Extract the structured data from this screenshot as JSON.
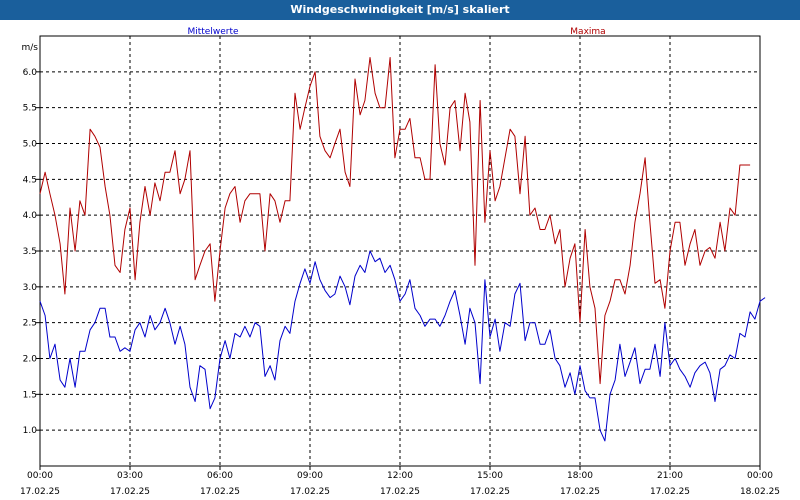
{
  "chart_data": {
    "type": "line",
    "title": "Windgeschwindigkeit [m/s] skaliert",
    "ylabel": "m/s",
    "ylim": [
      0.5,
      6.5
    ],
    "yticks": [
      1.0,
      1.5,
      2.0,
      2.5,
      3.0,
      3.5,
      4.0,
      4.5,
      5.0,
      5.5,
      6.0
    ],
    "xlim_hours": [
      0,
      24
    ],
    "xticks": [
      {
        "hour": 0,
        "time": "00:00",
        "date": "17.02.25"
      },
      {
        "hour": 3,
        "time": "03:00",
        "date": "17.02.25"
      },
      {
        "hour": 6,
        "time": "06:00",
        "date": "17.02.25"
      },
      {
        "hour": 9,
        "time": "09:00",
        "date": "17.02.25"
      },
      {
        "hour": 12,
        "time": "12:00",
        "date": "17.02.25"
      },
      {
        "hour": 15,
        "time": "15:00",
        "date": "17.02.25"
      },
      {
        "hour": 18,
        "time": "18:00",
        "date": "17.02.25"
      },
      {
        "hour": 21,
        "time": "21:00",
        "date": "17.02.25"
      },
      {
        "hour": 24,
        "time": "00:00",
        "date": "18.02.25"
      }
    ],
    "grid": true,
    "series": [
      {
        "name": "Mittelwerte",
        "color": "#0000cc",
        "points": [
          [
            0.0,
            2.8
          ],
          [
            0.17,
            2.6
          ],
          [
            0.33,
            2.0
          ],
          [
            0.5,
            2.2
          ],
          [
            0.67,
            1.7
          ],
          [
            0.83,
            1.6
          ],
          [
            1.0,
            2.0
          ],
          [
            1.17,
            1.6
          ],
          [
            1.33,
            2.1
          ],
          [
            1.5,
            2.1
          ],
          [
            1.67,
            2.4
          ],
          [
            1.83,
            2.5
          ],
          [
            2.0,
            2.7
          ],
          [
            2.17,
            2.7
          ],
          [
            2.33,
            2.3
          ],
          [
            2.5,
            2.3
          ],
          [
            2.67,
            2.1
          ],
          [
            2.83,
            2.15
          ],
          [
            3.0,
            2.1
          ],
          [
            3.17,
            2.4
          ],
          [
            3.33,
            2.5
          ],
          [
            3.5,
            2.3
          ],
          [
            3.67,
            2.6
          ],
          [
            3.83,
            2.4
          ],
          [
            4.0,
            2.5
          ],
          [
            4.17,
            2.7
          ],
          [
            4.33,
            2.5
          ],
          [
            4.5,
            2.2
          ],
          [
            4.67,
            2.45
          ],
          [
            4.83,
            2.2
          ],
          [
            5.0,
            1.6
          ],
          [
            5.17,
            1.4
          ],
          [
            5.33,
            1.9
          ],
          [
            5.5,
            1.85
          ],
          [
            5.67,
            1.3
          ],
          [
            5.83,
            1.45
          ],
          [
            6.0,
            2.0
          ],
          [
            6.17,
            2.25
          ],
          [
            6.33,
            2.0
          ],
          [
            6.5,
            2.35
          ],
          [
            6.67,
            2.3
          ],
          [
            6.83,
            2.45
          ],
          [
            7.0,
            2.3
          ],
          [
            7.17,
            2.5
          ],
          [
            7.33,
            2.45
          ],
          [
            7.5,
            1.75
          ],
          [
            7.67,
            1.9
          ],
          [
            7.83,
            1.7
          ],
          [
            8.0,
            2.25
          ],
          [
            8.17,
            2.45
          ],
          [
            8.33,
            2.35
          ],
          [
            8.5,
            2.8
          ],
          [
            8.67,
            3.05
          ],
          [
            8.83,
            3.25
          ],
          [
            9.0,
            3.05
          ],
          [
            9.17,
            3.35
          ],
          [
            9.33,
            3.1
          ],
          [
            9.5,
            2.95
          ],
          [
            9.67,
            2.85
          ],
          [
            9.83,
            2.9
          ],
          [
            10.0,
            3.15
          ],
          [
            10.17,
            3.0
          ],
          [
            10.33,
            2.75
          ],
          [
            10.5,
            3.15
          ],
          [
            10.67,
            3.3
          ],
          [
            10.83,
            3.2
          ],
          [
            11.0,
            3.5
          ],
          [
            11.17,
            3.35
          ],
          [
            11.33,
            3.4
          ],
          [
            11.5,
            3.2
          ],
          [
            11.67,
            3.3
          ],
          [
            11.83,
            3.1
          ],
          [
            12.0,
            2.8
          ],
          [
            12.17,
            2.9
          ],
          [
            12.33,
            3.1
          ],
          [
            12.5,
            2.7
          ],
          [
            12.67,
            2.6
          ],
          [
            12.83,
            2.45
          ],
          [
            13.0,
            2.55
          ],
          [
            13.17,
            2.55
          ],
          [
            13.33,
            2.45
          ],
          [
            13.5,
            2.6
          ],
          [
            13.67,
            2.8
          ],
          [
            13.83,
            2.95
          ],
          [
            14.0,
            2.6
          ],
          [
            14.17,
            2.2
          ],
          [
            14.33,
            2.7
          ],
          [
            14.5,
            2.5
          ],
          [
            14.67,
            1.65
          ],
          [
            14.83,
            3.1
          ],
          [
            15.0,
            2.3
          ],
          [
            15.17,
            2.55
          ],
          [
            15.33,
            2.1
          ],
          [
            15.5,
            2.5
          ],
          [
            15.67,
            2.45
          ],
          [
            15.83,
            2.9
          ],
          [
            16.0,
            3.05
          ],
          [
            16.17,
            2.25
          ],
          [
            16.33,
            2.5
          ],
          [
            16.5,
            2.5
          ],
          [
            16.67,
            2.2
          ],
          [
            16.83,
            2.2
          ],
          [
            17.0,
            2.4
          ],
          [
            17.17,
            2.0
          ],
          [
            17.33,
            1.9
          ],
          [
            17.5,
            1.6
          ],
          [
            17.67,
            1.8
          ],
          [
            17.83,
            1.5
          ],
          [
            18.0,
            1.9
          ],
          [
            18.17,
            1.55
          ],
          [
            18.33,
            1.45
          ],
          [
            18.5,
            1.45
          ],
          [
            18.67,
            1.0
          ],
          [
            18.83,
            0.85
          ],
          [
            19.0,
            1.5
          ],
          [
            19.17,
            1.7
          ],
          [
            19.33,
            2.2
          ],
          [
            19.5,
            1.75
          ],
          [
            19.67,
            1.95
          ],
          [
            19.83,
            2.15
          ],
          [
            20.0,
            1.65
          ],
          [
            20.17,
            1.85
          ],
          [
            20.33,
            1.85
          ],
          [
            20.5,
            2.2
          ],
          [
            20.67,
            1.75
          ],
          [
            20.83,
            2.5
          ],
          [
            21.0,
            1.9
          ],
          [
            21.17,
            2.0
          ],
          [
            21.33,
            1.85
          ],
          [
            21.5,
            1.75
          ],
          [
            21.67,
            1.6
          ],
          [
            21.83,
            1.8
          ],
          [
            22.0,
            1.9
          ],
          [
            22.17,
            1.95
          ],
          [
            22.33,
            1.8
          ],
          [
            22.5,
            1.4
          ],
          [
            22.67,
            1.85
          ],
          [
            22.83,
            1.9
          ],
          [
            23.0,
            2.05
          ],
          [
            23.17,
            2.0
          ],
          [
            23.33,
            2.35
          ],
          [
            23.5,
            2.3
          ],
          [
            23.67,
            2.65
          ],
          [
            23.83,
            2.55
          ],
          [
            24.0,
            2.8
          ],
          [
            24.17,
            2.85
          ]
        ]
      },
      {
        "name": "Maxima",
        "color": "#b00000",
        "points": [
          [
            0.0,
            4.3
          ],
          [
            0.17,
            4.6
          ],
          [
            0.33,
            4.3
          ],
          [
            0.5,
            4.0
          ],
          [
            0.67,
            3.6
          ],
          [
            0.83,
            2.9
          ],
          [
            1.0,
            4.1
          ],
          [
            1.17,
            3.5
          ],
          [
            1.33,
            4.2
          ],
          [
            1.5,
            4.0
          ],
          [
            1.67,
            5.2
          ],
          [
            1.83,
            5.1
          ],
          [
            2.0,
            4.95
          ],
          [
            2.17,
            4.4
          ],
          [
            2.33,
            4.0
          ],
          [
            2.5,
            3.3
          ],
          [
            2.67,
            3.2
          ],
          [
            2.83,
            3.8
          ],
          [
            3.0,
            4.1
          ],
          [
            3.17,
            3.1
          ],
          [
            3.33,
            3.9
          ],
          [
            3.5,
            4.4
          ],
          [
            3.67,
            4.0
          ],
          [
            3.83,
            4.45
          ],
          [
            4.0,
            4.2
          ],
          [
            4.17,
            4.6
          ],
          [
            4.33,
            4.6
          ],
          [
            4.5,
            4.9
          ],
          [
            4.67,
            4.3
          ],
          [
            4.83,
            4.5
          ],
          [
            5.0,
            4.9
          ],
          [
            5.17,
            3.1
          ],
          [
            5.33,
            3.3
          ],
          [
            5.5,
            3.5
          ],
          [
            5.67,
            3.6
          ],
          [
            5.83,
            2.8
          ],
          [
            6.0,
            3.5
          ],
          [
            6.17,
            4.1
          ],
          [
            6.33,
            4.3
          ],
          [
            6.5,
            4.4
          ],
          [
            6.67,
            3.9
          ],
          [
            6.83,
            4.2
          ],
          [
            7.0,
            4.3
          ],
          [
            7.17,
            4.3
          ],
          [
            7.33,
            4.3
          ],
          [
            7.5,
            3.5
          ],
          [
            7.67,
            4.3
          ],
          [
            7.83,
            4.2
          ],
          [
            8.0,
            3.9
          ],
          [
            8.17,
            4.2
          ],
          [
            8.33,
            4.2
          ],
          [
            8.5,
            5.7
          ],
          [
            8.67,
            5.2
          ],
          [
            8.83,
            5.5
          ],
          [
            9.0,
            5.8
          ],
          [
            9.17,
            6.0
          ],
          [
            9.33,
            5.1
          ],
          [
            9.5,
            4.9
          ],
          [
            9.67,
            4.8
          ],
          [
            9.83,
            5.0
          ],
          [
            10.0,
            5.2
          ],
          [
            10.17,
            4.6
          ],
          [
            10.33,
            4.4
          ],
          [
            10.5,
            5.9
          ],
          [
            10.67,
            5.4
          ],
          [
            10.83,
            5.6
          ],
          [
            11.0,
            6.2
          ],
          [
            11.17,
            5.7
          ],
          [
            11.33,
            5.5
          ],
          [
            11.5,
            5.5
          ],
          [
            11.67,
            6.2
          ],
          [
            11.83,
            4.8
          ],
          [
            12.0,
            5.2
          ],
          [
            12.17,
            5.2
          ],
          [
            12.33,
            5.35
          ],
          [
            12.5,
            4.8
          ],
          [
            12.67,
            4.8
          ],
          [
            12.83,
            4.5
          ],
          [
            13.0,
            4.5
          ],
          [
            13.17,
            6.1
          ],
          [
            13.33,
            5.0
          ],
          [
            13.5,
            4.7
          ],
          [
            13.67,
            5.5
          ],
          [
            13.83,
            5.6
          ],
          [
            14.0,
            4.9
          ],
          [
            14.17,
            5.7
          ],
          [
            14.33,
            5.3
          ],
          [
            14.5,
            3.3
          ],
          [
            14.67,
            5.6
          ],
          [
            14.83,
            3.9
          ],
          [
            15.0,
            4.9
          ],
          [
            15.17,
            4.2
          ],
          [
            15.33,
            4.4
          ],
          [
            15.5,
            4.8
          ],
          [
            15.67,
            5.2
          ],
          [
            15.83,
            5.1
          ],
          [
            16.0,
            4.3
          ],
          [
            16.17,
            5.1
          ],
          [
            16.33,
            4.0
          ],
          [
            16.5,
            4.1
          ],
          [
            16.67,
            3.8
          ],
          [
            16.83,
            3.8
          ],
          [
            17.0,
            4.0
          ],
          [
            17.17,
            3.6
          ],
          [
            17.33,
            3.8
          ],
          [
            17.5,
            3.0
          ],
          [
            17.67,
            3.4
          ],
          [
            17.83,
            3.6
          ],
          [
            18.0,
            2.5
          ],
          [
            18.17,
            3.8
          ],
          [
            18.33,
            3.0
          ],
          [
            18.5,
            2.7
          ],
          [
            18.67,
            1.65
          ],
          [
            18.83,
            2.6
          ],
          [
            19.0,
            2.8
          ],
          [
            19.17,
            3.1
          ],
          [
            19.33,
            3.1
          ],
          [
            19.5,
            2.9
          ],
          [
            19.67,
            3.3
          ],
          [
            19.83,
            3.9
          ],
          [
            20.0,
            4.3
          ],
          [
            20.17,
            4.8
          ],
          [
            20.33,
            3.9
          ],
          [
            20.5,
            3.05
          ],
          [
            20.67,
            3.1
          ],
          [
            20.83,
            2.7
          ],
          [
            21.0,
            3.5
          ],
          [
            21.17,
            3.9
          ],
          [
            21.33,
            3.9
          ],
          [
            21.5,
            3.3
          ],
          [
            21.67,
            3.6
          ],
          [
            21.83,
            3.8
          ],
          [
            22.0,
            3.3
          ],
          [
            22.17,
            3.5
          ],
          [
            22.33,
            3.55
          ],
          [
            22.5,
            3.4
          ],
          [
            22.67,
            3.9
          ],
          [
            22.83,
            3.5
          ],
          [
            23.0,
            4.1
          ],
          [
            23.17,
            4.0
          ],
          [
            23.33,
            4.7
          ],
          [
            23.5,
            4.7
          ],
          [
            23.67,
            4.7
          ]
        ]
      }
    ]
  }
}
